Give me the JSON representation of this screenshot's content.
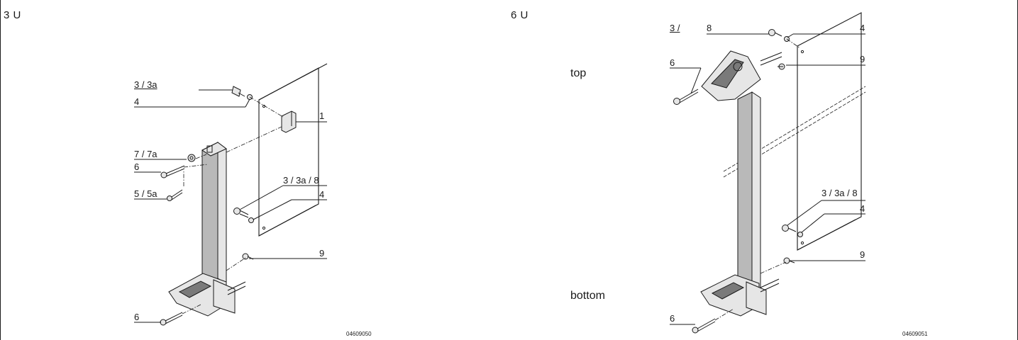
{
  "left": {
    "header": "3 U",
    "labels": {
      "l_3_3a": "3 / 3a",
      "l_4a": "4",
      "l_1": "1",
      "l_7_7a": "7 / 7a",
      "l_6a": "6",
      "l_5_5a": "5 / 5a",
      "l_3_3a_8": "3 / 3a / 8",
      "l_4b": "4",
      "l_9": "9",
      "l_6b": "6"
    },
    "figure_id": "04609050"
  },
  "right": {
    "header": "6 U",
    "labels": {
      "l_3": "3 /",
      "l_8": "8",
      "l_4a": "4",
      "l_6a": "6",
      "l_9a": "9",
      "l_3_3a_8": "3 / 3a / 8",
      "l_4b": "4",
      "l_9b": "9",
      "l_6b": "6"
    },
    "side_labels": {
      "top": "top",
      "bottom": "bottom"
    },
    "figure_id": "04609051"
  }
}
